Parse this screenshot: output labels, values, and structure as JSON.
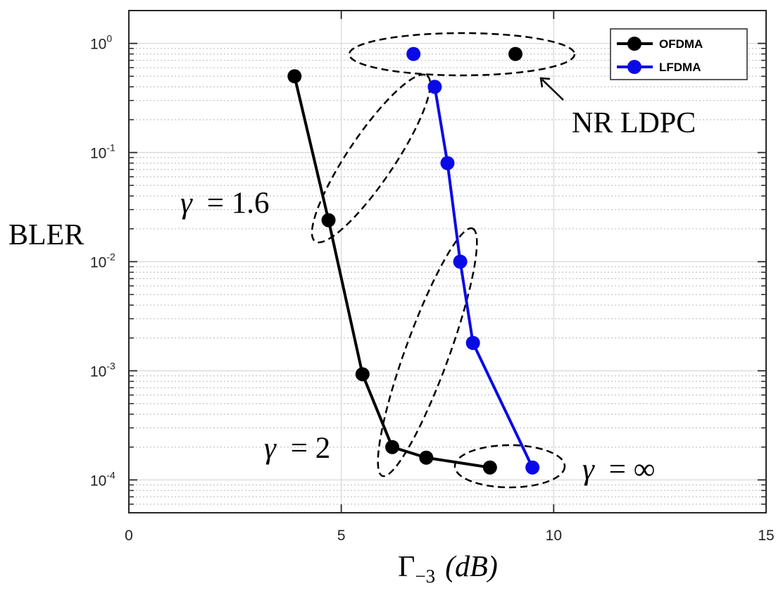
{
  "chart_data": {
    "type": "line",
    "title": "",
    "xlabel": "Γ₋₃ (dB)",
    "xlabel_parts": {
      "symbol": "Γ",
      "subscript": "−3",
      "unit": "(dB)"
    },
    "ylabel": "BLER",
    "xlim": [
      0,
      15
    ],
    "ylim": [
      5e-05,
      2
    ],
    "yscale": "log",
    "x_ticks": [
      0,
      5,
      10,
      15
    ],
    "x_tick_labels": [
      "0",
      "5",
      "10",
      "15"
    ],
    "y_ticks": [
      0.0001,
      0.001,
      0.01,
      0.1,
      1
    ],
    "y_tick_labels": [
      {
        "base": "10",
        "exp": "-4"
      },
      {
        "base": "10",
        "exp": "-3"
      },
      {
        "base": "10",
        "exp": "-2"
      },
      {
        "base": "10",
        "exp": "-1"
      },
      {
        "base": "10",
        "exp": "0"
      }
    ],
    "grid": true,
    "legend_position": "top-right",
    "series": [
      {
        "name": "OFDMA",
        "color": "#000000",
        "points": [
          {
            "x": 3.9,
            "y": 0.5
          },
          {
            "x": 4.7,
            "y": 0.024
          },
          {
            "x": 5.5,
            "y": 0.00093
          },
          {
            "x": 6.2,
            "y": 0.0002
          },
          {
            "x": 7.0,
            "y": 0.00016
          },
          {
            "x": 8.5,
            "y": 0.00013
          }
        ],
        "extra_points": [
          {
            "x": 9.1,
            "y": 0.8
          }
        ]
      },
      {
        "name": "LFDMA",
        "color": "#0a0ae6",
        "points": [
          {
            "x": 7.2,
            "y": 0.4
          },
          {
            "x": 7.5,
            "y": 0.08
          },
          {
            "x": 7.8,
            "y": 0.01
          },
          {
            "x": 8.1,
            "y": 0.0018
          },
          {
            "x": 9.5,
            "y": 0.00013
          }
        ],
        "extra_points": [
          {
            "x": 6.7,
            "y": 0.8
          }
        ]
      }
    ],
    "annotations": [
      {
        "id": "nr-ldpc",
        "text": "NR LDPC",
        "kind": "ellipse-with-arrow"
      },
      {
        "id": "gamma-16",
        "prefix": "γ",
        "text": "= 1.6",
        "kind": "ellipse"
      },
      {
        "id": "gamma-2",
        "prefix": "γ",
        "text": "= 2",
        "kind": "ellipse"
      },
      {
        "id": "gamma-inf",
        "prefix": "γ",
        "text": "= ∞",
        "kind": "ellipse"
      }
    ]
  }
}
